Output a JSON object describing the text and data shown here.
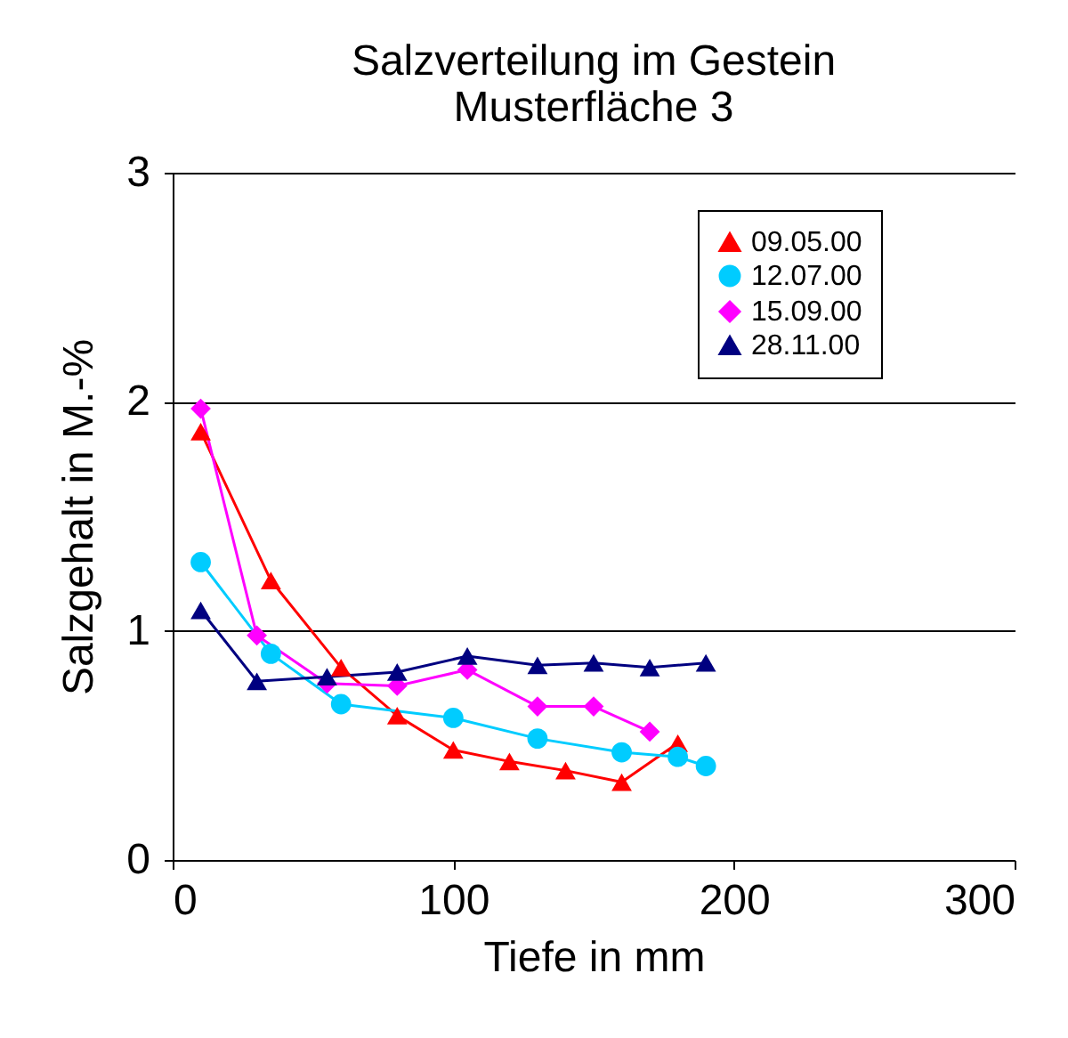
{
  "chart_data": {
    "type": "line",
    "title": "Salzverteilung im Gestein",
    "subtitle": "Musterfläche 3",
    "xlabel": "Tiefe in mm",
    "ylabel": "Salzgehalt in M.-%",
    "xlim": [
      0,
      300
    ],
    "xticks": [
      0,
      100,
      200,
      300
    ],
    "ylim": [
      0,
      3
    ],
    "yticks": [
      0,
      1,
      2,
      3
    ],
    "grid": "y",
    "legend": "top right",
    "series": [
      {
        "name": "09.05.00",
        "color": "#ff0000",
        "marker": "triangle",
        "x": [
          10,
          35,
          60,
          80,
          100,
          120,
          140,
          160,
          180
        ],
        "values": [
          1.87,
          1.22,
          0.84,
          0.63,
          0.48,
          0.43,
          0.39,
          0.34,
          0.51
        ]
      },
      {
        "name": "12.07.00",
        "color": "#00ccff",
        "marker": "circle",
        "x": [
          10,
          35,
          60,
          100,
          130,
          160,
          180,
          190
        ],
        "values": [
          1.3,
          0.9,
          0.68,
          0.62,
          0.53,
          0.47,
          0.45,
          0.41
        ]
      },
      {
        "name": "15.09.00",
        "color": "#ff00ff",
        "marker": "diamond",
        "x": [
          10,
          30,
          55,
          80,
          105,
          130,
          150,
          170
        ],
        "values": [
          1.97,
          0.98,
          0.77,
          0.76,
          0.83,
          0.67,
          0.67,
          0.56
        ]
      },
      {
        "name": "28.11.00",
        "color": "#000080",
        "marker": "triangle",
        "x": [
          10,
          30,
          55,
          80,
          105,
          130,
          150,
          170,
          190
        ],
        "values": [
          1.09,
          0.78,
          0.8,
          0.82,
          0.89,
          0.85,
          0.86,
          0.84,
          0.86
        ]
      }
    ]
  }
}
